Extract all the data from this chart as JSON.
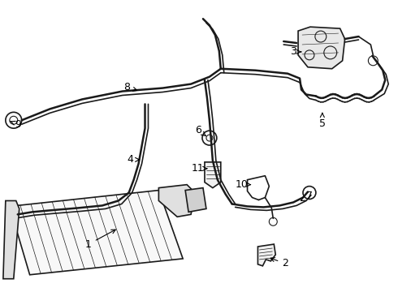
{
  "bg_color": "#ffffff",
  "line_color": "#1a1a1a",
  "label_color": "#000000",
  "lw_main": 1.2,
  "lw_thick": 1.8,
  "lw_thin": 0.5
}
